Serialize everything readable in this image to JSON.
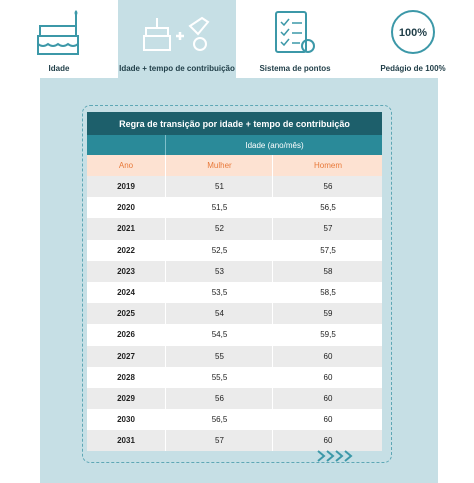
{
  "tabs": [
    {
      "label": "Idade"
    },
    {
      "label": "Idade + tempo de contribuição"
    },
    {
      "label": "Sistema de pontos"
    },
    {
      "label": "Pedágio de 100%",
      "icon_text": "100%"
    }
  ],
  "table": {
    "title": "Regra de transição por idade + tempo de contribuição",
    "group_header": "Idade (ano/mês)",
    "columns": [
      "Ano",
      "Mulher",
      "Homem"
    ],
    "rows": [
      [
        "2019",
        "51",
        "56"
      ],
      [
        "2020",
        "51,5",
        "56,5"
      ],
      [
        "2021",
        "52",
        "57"
      ],
      [
        "2022",
        "52,5",
        "57,5"
      ],
      [
        "2023",
        "53",
        "58"
      ],
      [
        "2024",
        "53,5",
        "58,5"
      ],
      [
        "2025",
        "54",
        "59"
      ],
      [
        "2026",
        "54,5",
        "59,5"
      ],
      [
        "2027",
        "55",
        "60"
      ],
      [
        "2028",
        "55,5",
        "60"
      ],
      [
        "2029",
        "56",
        "60"
      ],
      [
        "2030",
        "56,5",
        "60"
      ],
      [
        "2031",
        "57",
        "60"
      ]
    ]
  }
}
